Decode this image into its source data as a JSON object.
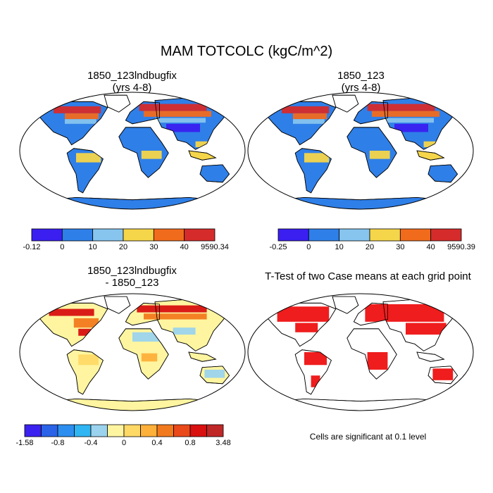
{
  "title": "MAM TOTCOLC (kgC/m^2)",
  "footnote": "Cells are significant at 0.1 level",
  "panels": [
    {
      "id": "p1",
      "title1": "1850_123lndbugfix",
      "title2": "(yrs 4-8)"
    },
    {
      "id": "p2",
      "title1": "1850_123",
      "title2": "(yrs 4-8)"
    },
    {
      "id": "p3",
      "title1": "1850_123lndbugfix",
      "title2": "- 1850_123"
    },
    {
      "id": "p4",
      "title1": "T-Test of two Case means at each grid point",
      "title2": ""
    }
  ],
  "colorbars": [
    {
      "colors": [
        "#3a1ff0",
        "#2f7fe8",
        "#87c5ee",
        "#f5d64a",
        "#f16b1d",
        "#d62b2b"
      ],
      "labels": [
        "-0.12",
        "0",
        "10",
        "20",
        "30",
        "40",
        "9590.34"
      ]
    },
    {
      "colors": [
        "#3a1ff0",
        "#2f7fe8",
        "#87c5ee",
        "#f5d64a",
        "#f16b1d",
        "#d62b2b"
      ],
      "labels": [
        "-0.25",
        "0",
        "10",
        "20",
        "30",
        "40",
        "9590.39"
      ]
    },
    {
      "colors": [
        "#3b22f0",
        "#2a63e8",
        "#2c8ff0",
        "#2fb5f2",
        "#9bd3ee",
        "#fff5a0",
        "#ffd966",
        "#fdb03a",
        "#f27a1e",
        "#ea4a1a",
        "#d81010",
        "#c02727"
      ],
      "labels": [
        "-1.58",
        "",
        "-0.8",
        "",
        "-0.4",
        "",
        "0",
        "",
        "0.4",
        "",
        "0.8",
        "",
        "3.48"
      ]
    }
  ],
  "chart_data": [
    {
      "type": "heatmap",
      "title": "1850_123lndbugfix (yrs 4-8)",
      "map_projection": "Robinson",
      "levels": [
        -0.12,
        0,
        10,
        20,
        30,
        40,
        9590.34
      ],
      "dominant_land_range": "0-10",
      "notes": "high values (30-9590) over boreal Northern Hemisphere; 20-30 over Amazon, central Africa, Southeast Asia"
    },
    {
      "type": "heatmap",
      "title": "1850_123 (yrs 4-8)",
      "map_projection": "Robinson",
      "levels": [
        -0.25,
        0,
        10,
        20,
        30,
        40,
        9590.39
      ],
      "dominant_land_range": "0-10",
      "notes": "pattern nearly identical to first case"
    },
    {
      "type": "heatmap",
      "title": "1850_123lndbugfix - 1850_123",
      "map_projection": "Robinson",
      "levels": [
        -1.58,
        -0.8,
        -0.4,
        0,
        0.4,
        0.8,
        3.48
      ],
      "notes": "mostly 0 to 0.4 over land, positive up to 3.48 in North America and Eurasia, slightly negative in Sahara and parts of Australia"
    },
    {
      "type": "heatmap",
      "title": "T-Test of two Case means at each grid point",
      "map_projection": "Robinson",
      "significance_level": 0.1,
      "notes": "red cells mark significant differences; most Northern Hemisphere land significant"
    }
  ]
}
